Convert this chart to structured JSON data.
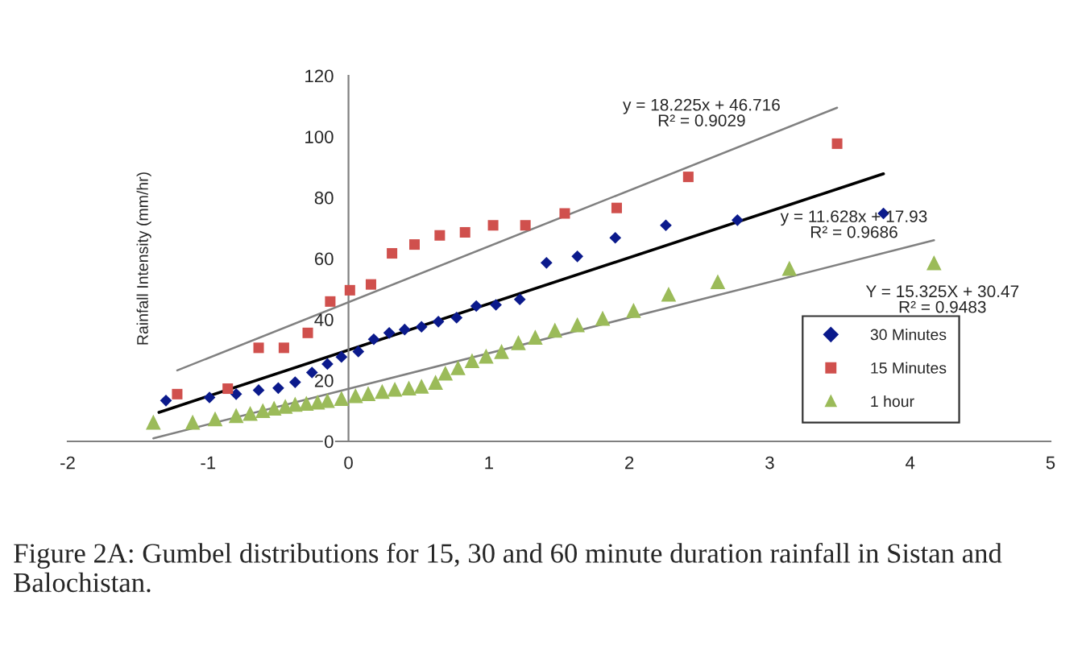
{
  "chart_data": {
    "type": "scatter",
    "ylabel": "Rainfall Intensity (mm/hr)",
    "xlim": [
      -2,
      5
    ],
    "xticks": [
      -2,
      -1,
      0,
      1,
      2,
      3,
      4,
      5
    ],
    "ylim": [
      0,
      120
    ],
    "yticks": [
      0,
      20,
      40,
      60,
      80,
      100,
      120
    ],
    "grid": false,
    "legend": "bottom right",
    "series": [
      {
        "name": "30 Minutes",
        "marker": "diamond",
        "color": "#0b1a8c",
        "x": [
          -1.3,
          -0.99,
          -0.8,
          -0.64,
          -0.5,
          -0.38,
          -0.26,
          -0.15,
          -0.05,
          0.07,
          0.18,
          0.29,
          0.4,
          0.52,
          0.64,
          0.77,
          0.91,
          1.05,
          1.22,
          1.41,
          1.63,
          1.9,
          2.26,
          2.77,
          3.81
        ],
        "values": [
          13.4,
          14.4,
          15.5,
          16.8,
          17.5,
          19.4,
          22.6,
          25.4,
          27.7,
          29.5,
          33.5,
          35.6,
          36.7,
          37.6,
          39.3,
          40.6,
          44.4,
          44.8,
          46.6,
          58.6,
          60.7,
          66.8,
          70.9,
          72.6,
          74.8
        ]
      },
      {
        "name": "15 Minutes",
        "marker": "square",
        "color": "#d0504d",
        "x": [
          -1.22,
          -0.86,
          -0.64,
          -0.46,
          -0.29,
          -0.13,
          0.01,
          0.16,
          0.31,
          0.47,
          0.65,
          0.83,
          1.03,
          1.26,
          1.54,
          1.91,
          2.42,
          3.48
        ],
        "values": [
          15.5,
          17.3,
          30.7,
          30.7,
          35.6,
          45.9,
          49.6,
          51.5,
          61.7,
          64.6,
          67.6,
          68.6,
          70.9,
          70.9,
          74.8,
          76.6,
          86.8,
          97.7
        ]
      },
      {
        "name": "1 hour",
        "marker": "triangle",
        "color": "#9bbb59",
        "x": [
          -1.39,
          -1.11,
          -0.95,
          -0.8,
          -0.7,
          -0.61,
          -0.53,
          -0.45,
          -0.38,
          -0.3,
          -0.22,
          -0.15,
          -0.05,
          0.05,
          0.14,
          0.24,
          0.33,
          0.43,
          0.52,
          0.62,
          0.69,
          0.78,
          0.88,
          0.98,
          1.09,
          1.21,
          1.33,
          1.47,
          1.63,
          1.81,
          2.03,
          2.28,
          2.63,
          3.14,
          4.17
        ],
        "values": [
          6.3,
          6.3,
          7.4,
          8.5,
          9.2,
          10.1,
          10.9,
          11.5,
          12.2,
          12.5,
          12.9,
          13.4,
          14.1,
          15.0,
          15.7,
          16.4,
          17.1,
          17.5,
          18.1,
          19.4,
          22.4,
          24.2,
          26.5,
          28.0,
          29.5,
          32.4,
          34.2,
          36.5,
          38.3,
          40.4,
          43.0,
          48.3,
          52.4,
          56.8,
          58.6
        ]
      },
      {
        "type": "line",
        "color": "#808080",
        "x": [
          -1.22,
          3.48
        ],
        "values": [
          23.3,
          109.5
        ]
      },
      {
        "type": "line",
        "color": "#000000",
        "x": [
          -1.35,
          3.81
        ],
        "values": [
          9.5,
          87.8
        ]
      },
      {
        "type": "line",
        "color": "#808080",
        "x": [
          -1.39,
          4.17
        ],
        "values": [
          1.0,
          66.0
        ]
      }
    ],
    "annotations": [
      "y = 18.225x + 46.716\nR² = 0.9029",
      "y = 11.628x + 17.93\nR² = 0.9686",
      "Y = 15.325X + 30.47\nR² = 0.9483",
      "Figure 2A: Gumbel distributions for 15, 30 and 60 minute duration rainfall in Sistan and Balochistan."
    ]
  }
}
